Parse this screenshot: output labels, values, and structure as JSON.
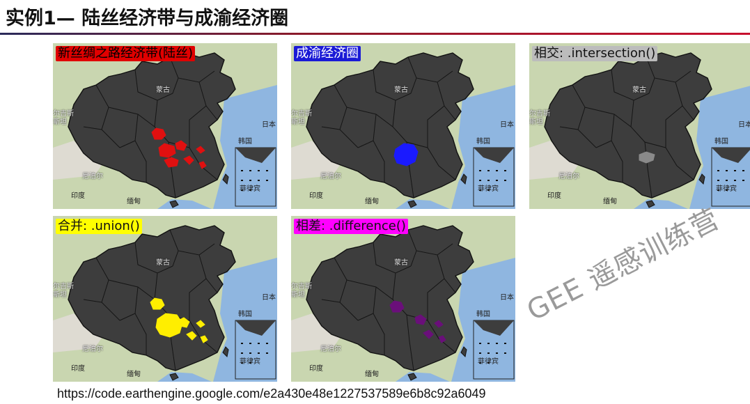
{
  "slide": {
    "title": "实例1— 陆丝经济带与成渝经济圈",
    "url": "https://code.earthengine.google.com/e2a430e48e1227537589e6b8c92a6049",
    "watermark": "GEE 遥感训练营"
  },
  "map_places": {
    "mongolia": "蒙古",
    "korea": "韩国",
    "kyrgyz": "尔吉斯",
    "kyrgyz2": "斯坦",
    "nepal": "尼泊尔",
    "india": "印度",
    "myanmar": "缅甸",
    "japan": "日本",
    "philippines": "菲律宾"
  },
  "panels": [
    {
      "label": "新丝绸之路经济带(陆丝)",
      "label_bg": "#e00000",
      "label_color": "#000000",
      "highlight": "#e01010"
    },
    {
      "label": "成渝经济圈",
      "label_bg": "#1a1ad6",
      "label_color": "#ffffff",
      "highlight": "#1a1aff"
    },
    {
      "label": "相交: .intersection()",
      "label_bg": "#bcbcbc",
      "label_color": "#111111",
      "highlight": "#8a8a8a"
    },
    {
      "label": "合并: .union()",
      "label_bg": "#ffff00",
      "label_color": "#111111",
      "highlight": "#ffee00"
    },
    {
      "label": "相差: .difference()",
      "label_bg": "#ff00ff",
      "label_color": "#111111",
      "highlight": "#6a0f7a"
    }
  ]
}
